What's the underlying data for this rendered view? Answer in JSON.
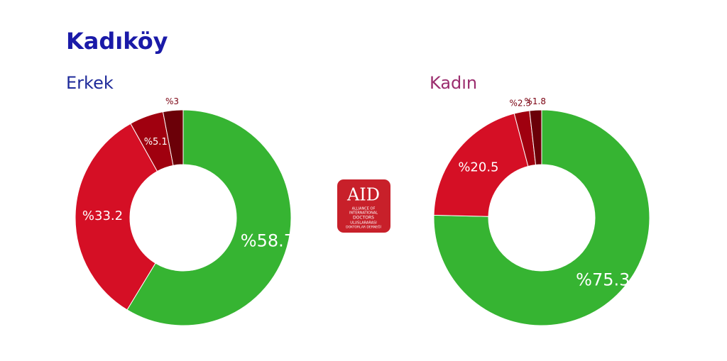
{
  "title": "Kadıköy",
  "logo": {
    "mark": "AID",
    "line1": "ALLIANCE OF",
    "line2": "INTERNATIONAL",
    "line3": "DOCTORS",
    "line4": "ULUSLARARASI",
    "line5": "DOKTORLAR DERNEĞİ"
  },
  "chart_data": [
    {
      "type": "donut",
      "title": "Erkek",
      "title_color": "#1e2a9a",
      "values": [
        58.7,
        33.2,
        5.1,
        3
      ],
      "value_labels": [
        "%58.7",
        "%33.2",
        "%5.1",
        "%3"
      ],
      "colors": [
        "#36b432",
        "#d50f25",
        "#a0000f",
        "#6b0008"
      ]
    },
    {
      "type": "donut",
      "title": "Kadın",
      "title_color": "#9b2d6e",
      "values": [
        75.3,
        20.5,
        2.3,
        1.8
      ],
      "value_labels": [
        "%75.3",
        "%20.5",
        "%2.3",
        "%1.8"
      ],
      "colors": [
        "#36b432",
        "#d50f25",
        "#a0000f",
        "#6b0008"
      ]
    }
  ]
}
